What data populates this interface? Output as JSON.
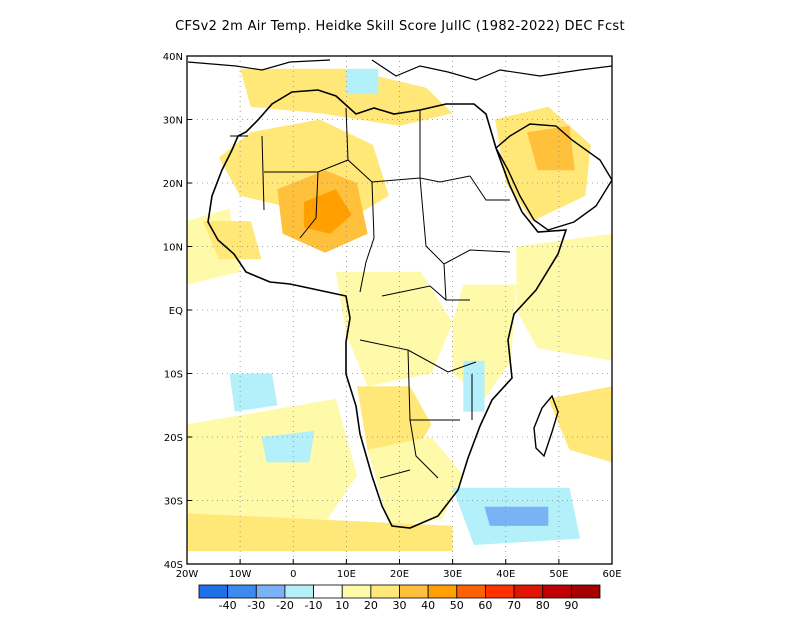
{
  "title": "CFSv2  2m Air Temp. Heidke Skill Score JulIC (1982-2022) DEC Fcst",
  "map": {
    "lon_range": [
      -20,
      60
    ],
    "lat_range": [
      -40,
      40
    ],
    "lon_ticks": [
      {
        "value": -20,
        "label": "20W"
      },
      {
        "value": -10,
        "label": "10W"
      },
      {
        "value": 0,
        "label": "0"
      },
      {
        "value": 10,
        "label": "10E"
      },
      {
        "value": 20,
        "label": "20E"
      },
      {
        "value": 30,
        "label": "30E"
      },
      {
        "value": 40,
        "label": "40E"
      },
      {
        "value": 50,
        "label": "50E"
      },
      {
        "value": 60,
        "label": "60E"
      }
    ],
    "lat_ticks": [
      {
        "value": 40,
        "label": "40N"
      },
      {
        "value": 30,
        "label": "30N"
      },
      {
        "value": 20,
        "label": "20N"
      },
      {
        "value": 10,
        "label": "10N"
      },
      {
        "value": 0,
        "label": "EQ"
      },
      {
        "value": -10,
        "label": "10S"
      },
      {
        "value": -20,
        "label": "20S"
      },
      {
        "value": -30,
        "label": "30S"
      },
      {
        "value": -40,
        "label": "40S"
      }
    ]
  },
  "colorbar": {
    "colors": [
      "#1e6fe8",
      "#3c8cf0",
      "#78b4f5",
      "#b4f0fa",
      "#ffffff",
      "#fffaaa",
      "#ffe878",
      "#ffc03c",
      "#ffa000",
      "#ff6000",
      "#ff3200",
      "#e11400",
      "#c00000",
      "#a50000"
    ],
    "labels": [
      "-40",
      "-30",
      "-20",
      "-10",
      "10",
      "20",
      "30",
      "40",
      "50",
      "60",
      "70",
      "80",
      "90"
    ]
  },
  "regions": [
    {
      "name": "sahara-west",
      "color": "#ffe878",
      "points": [
        [
          -8,
          28
        ],
        [
          5,
          30
        ],
        [
          15,
          26
        ],
        [
          18,
          18
        ],
        [
          10,
          14
        ],
        [
          0,
          16
        ],
        [
          -10,
          18
        ],
        [
          -14,
          24
        ]
      ]
    },
    {
      "name": "sahel-warm",
      "color": "#ffc03c",
      "points": [
        [
          -3,
          19
        ],
        [
          6,
          22
        ],
        [
          12,
          20
        ],
        [
          14,
          12
        ],
        [
          6,
          9
        ],
        [
          -2,
          12
        ]
      ]
    },
    {
      "name": "west-africa-core",
      "color": "#ffa000",
      "points": [
        [
          2,
          17
        ],
        [
          8,
          19
        ],
        [
          11,
          15
        ],
        [
          7,
          12
        ],
        [
          2,
          13
        ]
      ]
    },
    {
      "name": "arabia-warm",
      "color": "#ffe878",
      "points": [
        [
          38,
          30
        ],
        [
          48,
          32
        ],
        [
          56,
          26
        ],
        [
          55,
          18
        ],
        [
          45,
          14
        ],
        [
          40,
          20
        ]
      ]
    },
    {
      "name": "arabia-core",
      "color": "#ffc03c",
      "points": [
        [
          44,
          28
        ],
        [
          52,
          29
        ],
        [
          53,
          22
        ],
        [
          46,
          22
        ]
      ]
    },
    {
      "name": "north-coast",
      "color": "#ffe878",
      "points": [
        [
          -10,
          38
        ],
        [
          10,
          38
        ],
        [
          25,
          35
        ],
        [
          30,
          31
        ],
        [
          20,
          29
        ],
        [
          5,
          31
        ],
        [
          -8,
          32
        ]
      ]
    },
    {
      "name": "congo-mild",
      "color": "#fffaaa",
      "points": [
        [
          8,
          6
        ],
        [
          24,
          6
        ],
        [
          30,
          -2
        ],
        [
          26,
          -10
        ],
        [
          14,
          -12
        ],
        [
          10,
          -4
        ]
      ]
    },
    {
      "name": "angola-warm",
      "color": "#ffe878",
      "points": [
        [
          12,
          -12
        ],
        [
          22,
          -12
        ],
        [
          26,
          -18
        ],
        [
          22,
          -24
        ],
        [
          14,
          -22
        ]
      ]
    },
    {
      "name": "southern-africa",
      "color": "#fffaaa",
      "points": [
        [
          14,
          -22
        ],
        [
          26,
          -20
        ],
        [
          32,
          -26
        ],
        [
          28,
          -33
        ],
        [
          18,
          -34
        ],
        [
          16,
          -28
        ]
      ]
    },
    {
      "name": "east-africa",
      "color": "#fffaaa",
      "points": [
        [
          32,
          4
        ],
        [
          42,
          4
        ],
        [
          41,
          -8
        ],
        [
          36,
          -14
        ],
        [
          30,
          -10
        ],
        [
          30,
          -2
        ]
      ]
    },
    {
      "name": "indian-ocean-warm",
      "color": "#ffe878",
      "points": [
        [
          48,
          -14
        ],
        [
          60,
          -12
        ],
        [
          60,
          -24
        ],
        [
          52,
          -22
        ]
      ]
    },
    {
      "name": "indian-ocean-mild",
      "color": "#fffaaa",
      "points": [
        [
          42,
          10
        ],
        [
          60,
          12
        ],
        [
          60,
          -8
        ],
        [
          46,
          -6
        ],
        [
          42,
          0
        ]
      ]
    },
    {
      "name": "atlantic-south",
      "color": "#fffaaa",
      "points": [
        [
          -20,
          -18
        ],
        [
          8,
          -14
        ],
        [
          12,
          -26
        ],
        [
          4,
          -36
        ],
        [
          -20,
          -36
        ]
      ]
    },
    {
      "name": "atlantic-north",
      "color": "#fffaaa",
      "points": [
        [
          -20,
          14
        ],
        [
          -12,
          16
        ],
        [
          -10,
          6
        ],
        [
          -20,
          4
        ]
      ]
    },
    {
      "name": "west-africa-coast",
      "color": "#ffe878",
      "points": [
        [
          -17,
          14
        ],
        [
          -8,
          14
        ],
        [
          -6,
          8
        ],
        [
          -14,
          8
        ]
      ]
    },
    {
      "name": "atlantic-cool-1",
      "color": "#b4f0fa",
      "points": [
        [
          -12,
          -10
        ],
        [
          -4,
          -10
        ],
        [
          -3,
          -15
        ],
        [
          -11,
          -16
        ]
      ]
    },
    {
      "name": "atlantic-cool-2",
      "color": "#b4f0fa",
      "points": [
        [
          -6,
          -20
        ],
        [
          4,
          -19
        ],
        [
          3,
          -24
        ],
        [
          -5,
          -24
        ]
      ]
    },
    {
      "name": "south-ocean-cool",
      "color": "#b4f0fa",
      "points": [
        [
          30,
          -28
        ],
        [
          52,
          -28
        ],
        [
          54,
          -36
        ],
        [
          34,
          -37
        ]
      ]
    },
    {
      "name": "south-ocean-core",
      "color": "#78b4f5",
      "points": [
        [
          36,
          -31
        ],
        [
          48,
          -31
        ],
        [
          48,
          -34
        ],
        [
          37,
          -34
        ]
      ]
    },
    {
      "name": "lake-region-cool",
      "color": "#b4f0fa",
      "points": [
        [
          32,
          -8
        ],
        [
          36,
          -8
        ],
        [
          36,
          -16
        ],
        [
          32,
          -16
        ]
      ]
    },
    {
      "name": "med-cool",
      "color": "#b4f0fa",
      "points": [
        [
          10,
          38
        ],
        [
          16,
          38
        ],
        [
          16,
          34
        ],
        [
          10,
          34
        ]
      ]
    },
    {
      "name": "south-band",
      "color": "#ffe878",
      "points": [
        [
          -20,
          -32
        ],
        [
          30,
          -34
        ],
        [
          30,
          -38
        ],
        [
          -20,
          -38
        ]
      ]
    }
  ]
}
